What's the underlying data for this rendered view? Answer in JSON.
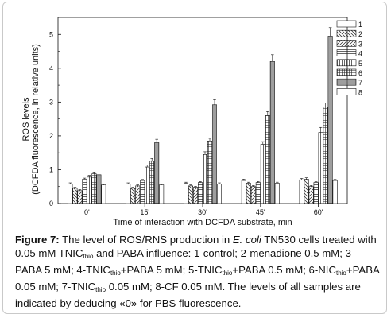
{
  "chart_data": {
    "type": "bar",
    "title": "",
    "xlabel": "Time of interaction with DCFDA substrate, min",
    "ylabel_line1": "ROS levels",
    "ylabel_line2": "(DCFDA fluorescence, in relative units)",
    "categories": [
      "0'",
      "15'",
      "30'",
      "45'",
      "60'"
    ],
    "ylim": [
      0,
      5.5
    ],
    "yticks": [
      "0",
      "1",
      "2",
      "3",
      "4",
      "5"
    ],
    "legend_position": "top-right",
    "series": [
      {
        "name": "1",
        "pattern": "empty",
        "values": [
          0.58,
          0.58,
          0.6,
          0.68,
          0.7
        ],
        "errors": [
          0.03,
          0.03,
          0.03,
          0.04,
          0.04
        ]
      },
      {
        "name": "2",
        "pattern": "back",
        "values": [
          0.45,
          0.45,
          0.52,
          0.6,
          0.72
        ],
        "errors": [
          0.03,
          0.03,
          0.03,
          0.03,
          0.04
        ]
      },
      {
        "name": "3",
        "pattern": "fwd",
        "values": [
          0.38,
          0.52,
          0.48,
          0.5,
          0.5
        ],
        "errors": [
          0.03,
          0.03,
          0.03,
          0.03,
          0.03
        ]
      },
      {
        "name": "4",
        "pattern": "hlines",
        "values": [
          0.72,
          0.68,
          0.62,
          0.62,
          0.62
        ],
        "errors": [
          0.03,
          0.03,
          0.03,
          0.03,
          0.03
        ]
      },
      {
        "name": "5",
        "pattern": "vlines",
        "values": [
          0.78,
          1.08,
          1.45,
          1.75,
          2.1
        ],
        "errors": [
          0.05,
          0.06,
          0.08,
          0.08,
          0.15
        ]
      },
      {
        "name": "6",
        "pattern": "grid",
        "values": [
          0.88,
          1.25,
          1.85,
          2.6,
          2.85
        ],
        "errors": [
          0.05,
          0.08,
          0.08,
          0.12,
          0.12
        ]
      },
      {
        "name": "7",
        "pattern": "densegrid",
        "values": [
          0.85,
          1.8,
          2.92,
          4.2,
          4.95
        ],
        "errors": [
          0.05,
          0.1,
          0.15,
          0.2,
          0.25
        ]
      },
      {
        "name": "8",
        "pattern": "empty",
        "values": [
          0.55,
          0.55,
          0.58,
          0.6,
          0.68
        ],
        "errors": [
          0.03,
          0.03,
          0.03,
          0.03,
          0.03
        ]
      }
    ]
  },
  "caption": {
    "label": "Figure 7:",
    "p1": " The level of ROS/RNS production in ",
    "organism": "E. coli",
    "p2": " TN530 cells treated with 0.05 mM TNIC",
    "sub1": "thio",
    "p3": " and PABA influence: 1-control; 2-menadione 0.5 mM; 3-PABA 5 mM; 4-TNIC",
    "sub2": "thio",
    "p4": "+PABA 5 mM; 5-TNIC",
    "sub3": "thio",
    "p5": "+PABA 0.5 mM; 6-NIC",
    "sub4": "thio",
    "p6": "+PABA 0.05 mM; 7-TNIC",
    "sub5": "thio",
    "p7": " 0.05 mM; 8-CF 0.05 mM. The levels of all samples are indicated by deducing «0» for PBS fluorescence."
  }
}
